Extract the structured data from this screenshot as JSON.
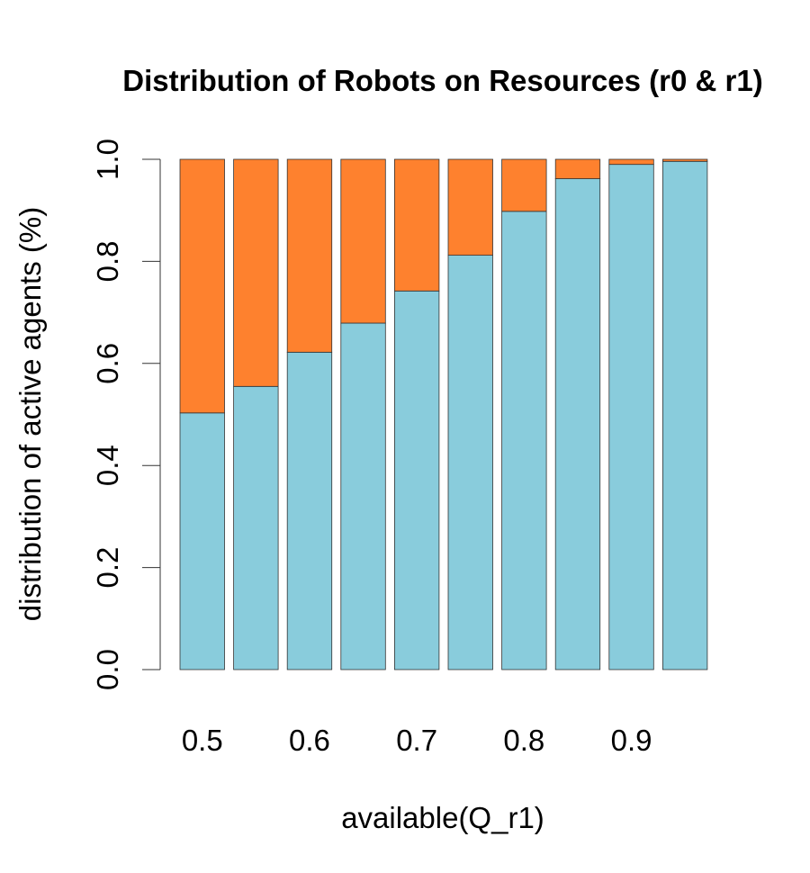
{
  "chart_data": {
    "type": "bar",
    "stacked": true,
    "title": "Distribution of Robots on Resources (r0 & r1)",
    "xlabel": "available(Q_r1)",
    "ylabel": "distribution of active agents (%)",
    "ylim": [
      0,
      1
    ],
    "yticks": [
      "0.0",
      "0.2",
      "0.4",
      "0.6",
      "0.8",
      "1.0"
    ],
    "xtick_labels": [
      "0.5",
      "0.6",
      "0.7",
      "0.8",
      "0.9"
    ],
    "categories": [
      "0.5",
      "0.55",
      "0.6",
      "0.65",
      "0.7",
      "0.75",
      "0.8",
      "0.85",
      "0.9",
      "0.95"
    ],
    "series": [
      {
        "color": "#89CCDC",
        "values": [
          0.503,
          0.555,
          0.622,
          0.679,
          0.742,
          0.812,
          0.898,
          0.962,
          0.99,
          0.996
        ]
      },
      {
        "color": "#FE812E",
        "values": [
          0.497,
          0.445,
          0.378,
          0.321,
          0.258,
          0.188,
          0.102,
          0.038,
          0.01,
          0.004
        ]
      }
    ],
    "grid": false,
    "legend": "none"
  }
}
